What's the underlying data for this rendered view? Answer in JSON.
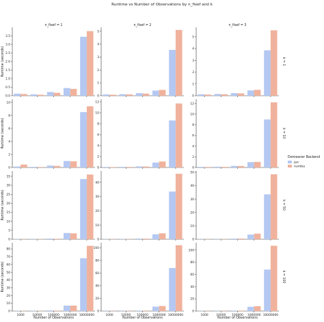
{
  "figure": {
    "title": "Runtime vs Number of Observations by n_fixef and k",
    "legend_title": "Demeaner Backend"
  },
  "colors": {
    "jax": "#b4c8f2",
    "numba": "#f0b29c",
    "axis": "#333333"
  },
  "chart_data": {
    "type": "bar",
    "categories": [
      "1000",
      "10000",
      "100000",
      "1000000",
      "10000000"
    ],
    "xlabel": "Number of Observations",
    "ylabel": "Runtime (seconds)",
    "legend": {
      "placement": "right",
      "entries": [
        "jax",
        "numba"
      ]
    },
    "grid": false,
    "columns": [
      "n_fixef = 1",
      "n_fixef = 2",
      "n_fixef = 3"
    ],
    "rows": [
      "k = 1",
      "k = 10",
      "k = 50",
      "k = 100"
    ],
    "panels": [
      {
        "row": 0,
        "col": 0,
        "ylim": [
          0,
          4.0
        ],
        "yticks": [
          0.0,
          0.5,
          1.0,
          1.5,
          2.0,
          2.5,
          3.0,
          3.5
        ],
        "series": [
          {
            "name": "jax",
            "values": [
              0.12,
              0.08,
              0.22,
              0.45,
              3.45
            ]
          },
          {
            "name": "numba",
            "values": [
              0.1,
              0.06,
              0.17,
              0.4,
              3.78
            ]
          }
        ]
      },
      {
        "row": 0,
        "col": 1,
        "ylim": [
          0,
          5.3
        ],
        "yticks": [
          0,
          1,
          2,
          3,
          4,
          5
        ],
        "series": [
          {
            "name": "jax",
            "values": [
              0.1,
              0.12,
              0.2,
              0.4,
              3.55
            ]
          },
          {
            "name": "numba",
            "values": [
              0.08,
              0.1,
              0.16,
              0.45,
              5.1
            ]
          }
        ]
      },
      {
        "row": 0,
        "col": 2,
        "ylim": [
          0,
          5.8
        ],
        "yticks": [
          0,
          1,
          2,
          3,
          4,
          5
        ],
        "series": [
          {
            "name": "jax",
            "values": [
              0.12,
              0.15,
              0.22,
              0.45,
              3.85
            ]
          },
          {
            "name": "numba",
            "values": [
              0.1,
              0.12,
              0.2,
              0.5,
              5.55
            ]
          }
        ]
      },
      {
        "row": 1,
        "col": 0,
        "ylim": [
          0,
          10.5
        ],
        "yticks": [
          0,
          2,
          4,
          6,
          8,
          10
        ],
        "series": [
          {
            "name": "jax",
            "values": [
              0.15,
              0.1,
              0.3,
              1.0,
              8.5
            ]
          },
          {
            "name": "numba",
            "values": [
              0.45,
              0.08,
              0.25,
              0.95,
              9.4
            ]
          }
        ]
      },
      {
        "row": 1,
        "col": 1,
        "ylim": [
          0,
          12.5
        ],
        "yticks": [
          0,
          2,
          4,
          6,
          8,
          10,
          12
        ],
        "series": [
          {
            "name": "jax",
            "values": [
              0.1,
              0.12,
              0.2,
              0.9,
              8.6
            ]
          },
          {
            "name": "numba",
            "values": [
              0.08,
              0.1,
              0.18,
              1.1,
              11.7
            ]
          }
        ]
      },
      {
        "row": 1,
        "col": 2,
        "ylim": [
          0,
          12.8
        ],
        "yticks": [
          0,
          2,
          4,
          6,
          8,
          10,
          12
        ],
        "series": [
          {
            "name": "jax",
            "values": [
              0.12,
              0.15,
              0.3,
              1.0,
              9.0
            ]
          },
          {
            "name": "numba",
            "values": [
              0.1,
              0.12,
              0.28,
              1.05,
              12.2
            ]
          }
        ]
      },
      {
        "row": 2,
        "col": 0,
        "ylim": [
          0,
          38
        ],
        "yticks": [
          0,
          5,
          10,
          15,
          20,
          25,
          30,
          35
        ],
        "series": [
          {
            "name": "jax",
            "values": [
              0.1,
              0.1,
              0.4,
              3.5,
              33.5
            ]
          },
          {
            "name": "numba",
            "values": [
              0.1,
              0.1,
              0.3,
              3.3,
              36.0
            ]
          }
        ]
      },
      {
        "row": 2,
        "col": 1,
        "ylim": [
          0,
          48
        ],
        "yticks": [
          0,
          10,
          20,
          30,
          40
        ],
        "series": [
          {
            "name": "jax",
            "values": [
              0.1,
              0.1,
              0.5,
              3.5,
              33.5
            ]
          },
          {
            "name": "numba",
            "values": [
              0.1,
              0.1,
              0.45,
              4.2,
              46.0
            ]
          }
        ]
      },
      {
        "row": 2,
        "col": 2,
        "ylim": [
          0,
          51
        ],
        "yticks": [
          0,
          10,
          20,
          30,
          40,
          50
        ],
        "series": [
          {
            "name": "jax",
            "values": [
              0.1,
              0.1,
              0.5,
              3.5,
              33.5
            ]
          },
          {
            "name": "numba",
            "values": [
              0.1,
              0.1,
              0.55,
              4.2,
              48.5
            ]
          }
        ]
      },
      {
        "row": 3,
        "col": 0,
        "ylim": [
          0,
          88
        ],
        "yticks": [
          0,
          10,
          20,
          30,
          40,
          50,
          60,
          70,
          80
        ],
        "series": [
          {
            "name": "jax",
            "values": [
              0.2,
              0.2,
              0.8,
              7.0,
              68.0
            ]
          },
          {
            "name": "numba",
            "values": [
              0.2,
              0.2,
              0.6,
              7.0,
              84.0
            ]
          }
        ]
      },
      {
        "row": 3,
        "col": 1,
        "ylim": [
          0,
          108
        ],
        "yticks": [
          0,
          20,
          40,
          60,
          80,
          100
        ],
        "series": [
          {
            "name": "jax",
            "values": [
              0.2,
              0.2,
              0.8,
              7.0,
              68.0
            ]
          },
          {
            "name": "numba",
            "values": [
              0.2,
              0.2,
              0.8,
              8.0,
              104.0
            ]
          }
        ]
      },
      {
        "row": 3,
        "col": 2,
        "ylim": [
          0,
          112
        ],
        "yticks": [
          0,
          20,
          40,
          60,
          80,
          100
        ],
        "series": [
          {
            "name": "jax",
            "values": [
              0.2,
              0.2,
              0.8,
              7.0,
              68.0
            ]
          },
          {
            "name": "numba",
            "values": [
              0.2,
              0.2,
              0.8,
              8.0,
              107.0
            ]
          }
        ]
      }
    ]
  }
}
